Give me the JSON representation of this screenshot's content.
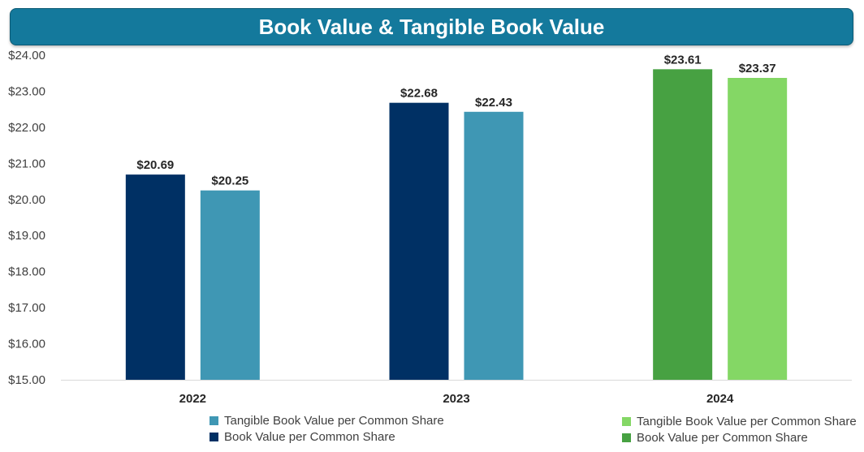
{
  "title": "Book Value & Tangible Book Value",
  "colors": {
    "book_2022_2023": "#003064",
    "tangible_2022_2023": "#3f97b4",
    "book_2024": "#47a142",
    "tangible_2024": "#84d765",
    "axis_text": "#404040",
    "label_text": "#262626"
  },
  "legend_left": [
    {
      "label": "Tangible Book Value per Common Share",
      "color": "#3f97b4"
    },
    {
      "label": "Book Value per Common Share",
      "color": "#003064"
    }
  ],
  "legend_right": [
    {
      "label": "Tangible Book Value per Common Share",
      "color": "#84d765"
    },
    {
      "label": "Book Value per Common Share",
      "color": "#47a142"
    }
  ],
  "chart_data": {
    "type": "bar",
    "title": "Book Value & Tangible Book Value",
    "categories": [
      "2022",
      "2023",
      "2024"
    ],
    "series": [
      {
        "name": "Book Value per Common Share",
        "values": [
          20.69,
          22.68,
          23.61
        ],
        "colors": [
          "#003064",
          "#003064",
          "#47a142"
        ]
      },
      {
        "name": "Tangible Book Value per Common Share",
        "values": [
          20.25,
          22.43,
          23.37
        ],
        "colors": [
          "#3f97b4",
          "#3f97b4",
          "#84d765"
        ]
      }
    ],
    "data_labels": [
      [
        "$20.69",
        "$22.68",
        "$23.61"
      ],
      [
        "$20.25",
        "$22.43",
        "$23.37"
      ]
    ],
    "ylim": [
      15,
      24
    ],
    "yticks": [
      "$15.00",
      "$16.00",
      "$17.00",
      "$18.00",
      "$19.00",
      "$20.00",
      "$21.00",
      "$22.00",
      "$23.00",
      "$24.00"
    ],
    "xlabel": "",
    "ylabel": "",
    "grid": false
  }
}
